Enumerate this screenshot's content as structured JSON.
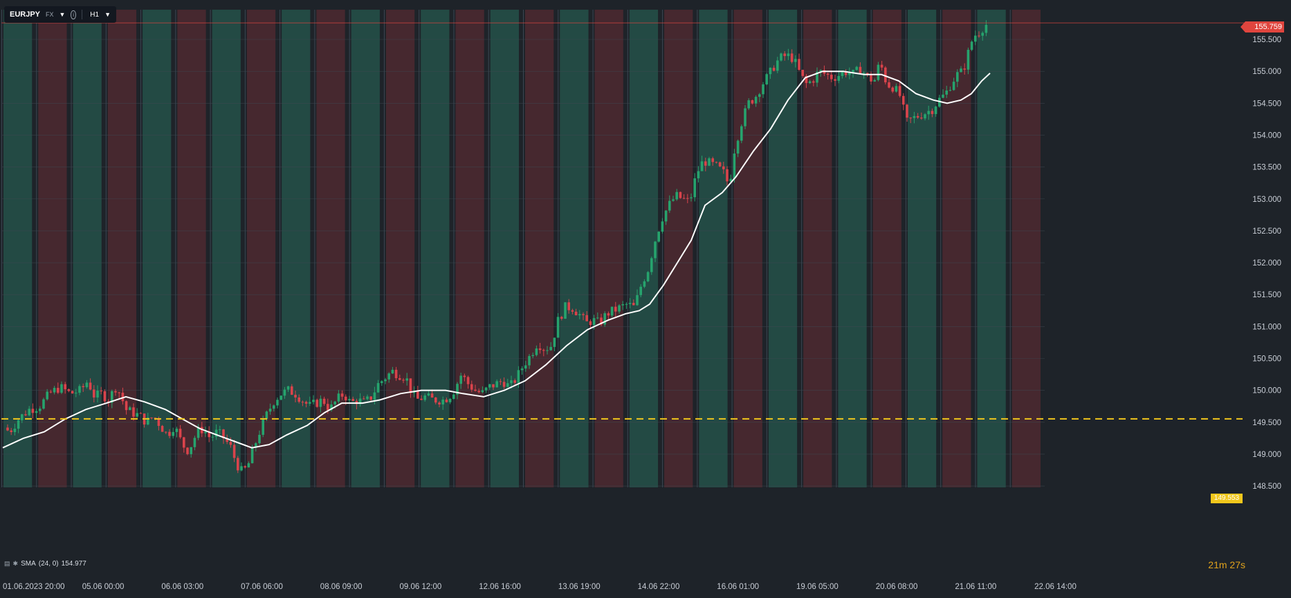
{
  "toolbar": {
    "symbol": "EURJPY",
    "market": "FX",
    "timeframe": "H1",
    "info_icon": "info-icon",
    "caret_icon": "chevron-down-icon"
  },
  "indicator": {
    "icons": [
      "list-icon",
      "settings-icon"
    ],
    "label": "SMA",
    "params": "(24, 0)",
    "value": "154.977"
  },
  "countdown": {
    "min": "21",
    "min_unit": "m",
    "sec": "27",
    "sec_unit": "s"
  },
  "current_price": "155.759",
  "level_price": "149.553",
  "colors": {
    "background": "#1e2329",
    "session_green": "#234a44",
    "session_red": "#46282f",
    "bull": "#26a36d",
    "bear": "#d9434b",
    "sma": "#ffffff",
    "level_line": "#f2c71c",
    "price_line": "#e0453e"
  },
  "chart_data": {
    "type": "candlestick",
    "symbol": "EURJPY",
    "timeframe": "H1",
    "y_ticks": [
      "155.500",
      "155.000",
      "154.500",
      "154.000",
      "153.500",
      "153.000",
      "152.500",
      "152.000",
      "151.500",
      "151.000",
      "150.500",
      "150.000",
      "149.500",
      "149.000",
      "148.500"
    ],
    "ylim": [
      148.45,
      156.15
    ],
    "x_ticks": [
      "01.06.2023  20:00",
      "05.06  00:00",
      "06.06  03:00",
      "07.06  06:00",
      "08.06  09:00",
      "09.06  12:00",
      "12.06  16:00",
      "13.06  19:00",
      "14.06  22:00",
      "16.06  01:00",
      "19.06  05:00",
      "20.06  08:00",
      "21.06  11:00",
      "22.06  14:00"
    ],
    "sessions": [
      "g",
      "r",
      "g",
      "r",
      "g",
      "r",
      "g",
      "r",
      "g",
      "r",
      "g",
      "r",
      "g",
      "r",
      "g",
      "r",
      "g",
      "r",
      "g",
      "r",
      "g",
      "r",
      "g",
      "r",
      "g",
      "r",
      "g",
      "r",
      "g",
      "r"
    ],
    "price_path": [
      [
        0,
        149.45
      ],
      [
        12,
        149.35
      ],
      [
        25,
        149.55
      ],
      [
        40,
        149.7
      ],
      [
        55,
        149.75
      ],
      [
        70,
        149.95
      ],
      [
        85,
        150.05
      ],
      [
        100,
        149.95
      ],
      [
        115,
        150.0
      ],
      [
        125,
        150.15
      ],
      [
        135,
        149.9
      ],
      [
        145,
        149.95
      ],
      [
        155,
        149.85
      ],
      [
        165,
        150.05
      ],
      [
        172,
        149.95
      ],
      [
        180,
        149.7
      ],
      [
        190,
        149.65
      ],
      [
        200,
        149.6
      ],
      [
        210,
        149.5
      ],
      [
        220,
        149.6
      ],
      [
        230,
        149.45
      ],
      [
        240,
        149.3
      ],
      [
        250,
        149.45
      ],
      [
        260,
        149.2
      ],
      [
        268,
        149.05
      ],
      [
        275,
        149.15
      ],
      [
        283,
        149.35
      ],
      [
        292,
        149.4
      ],
      [
        302,
        149.25
      ],
      [
        312,
        149.35
      ],
      [
        322,
        149.25
      ],
      [
        332,
        149.1
      ],
      [
        340,
        148.85
      ],
      [
        348,
        148.72
      ],
      [
        356,
        148.8
      ],
      [
        365,
        149.1
      ],
      [
        375,
        149.4
      ],
      [
        385,
        149.65
      ],
      [
        395,
        149.85
      ],
      [
        405,
        149.95
      ],
      [
        415,
        150.0
      ],
      [
        425,
        149.95
      ],
      [
        435,
        149.85
      ],
      [
        445,
        149.75
      ],
      [
        455,
        149.8
      ],
      [
        465,
        149.85
      ],
      [
        475,
        149.7
      ],
      [
        485,
        149.85
      ],
      [
        495,
        149.95
      ],
      [
        505,
        149.8
      ],
      [
        515,
        149.85
      ],
      [
        525,
        149.8
      ],
      [
        535,
        149.9
      ],
      [
        545,
        150.1
      ],
      [
        555,
        150.2
      ],
      [
        565,
        150.3
      ],
      [
        575,
        150.25
      ],
      [
        585,
        150.2
      ],
      [
        592,
        150.0
      ],
      [
        600,
        149.85
      ],
      [
        612,
        149.9
      ],
      [
        625,
        149.85
      ],
      [
        640,
        149.85
      ],
      [
        652,
        149.95
      ],
      [
        665,
        150.25
      ],
      [
        675,
        150.1
      ],
      [
        685,
        150.0
      ],
      [
        695,
        149.95
      ],
      [
        705,
        150.05
      ],
      [
        715,
        150.1
      ],
      [
        725,
        150.15
      ],
      [
        735,
        150.05
      ],
      [
        745,
        150.2
      ],
      [
        755,
        150.4
      ],
      [
        765,
        150.55
      ],
      [
        775,
        150.75
      ],
      [
        785,
        150.65
      ],
      [
        795,
        150.7
      ],
      [
        805,
        151.1
      ],
      [
        815,
        151.3
      ],
      [
        825,
        151.3
      ],
      [
        835,
        151.2
      ],
      [
        845,
        151.05
      ],
      [
        855,
        151.1
      ],
      [
        865,
        151.05
      ],
      [
        875,
        151.2
      ],
      [
        885,
        151.25
      ],
      [
        895,
        151.3
      ],
      [
        905,
        151.35
      ],
      [
        915,
        151.3
      ],
      [
        925,
        151.65
      ],
      [
        935,
        151.9
      ],
      [
        945,
        152.35
      ],
      [
        955,
        152.7
      ],
      [
        965,
        152.9
      ],
      [
        975,
        153.05
      ],
      [
        985,
        153.0
      ],
      [
        995,
        152.95
      ],
      [
        1005,
        153.4
      ],
      [
        1015,
        153.6
      ],
      [
        1025,
        153.55
      ],
      [
        1035,
        153.5
      ],
      [
        1045,
        153.4
      ],
      [
        1052,
        153.2
      ],
      [
        1060,
        153.8
      ],
      [
        1070,
        154.2
      ],
      [
        1080,
        154.5
      ],
      [
        1090,
        154.6
      ],
      [
        1100,
        154.8
      ],
      [
        1110,
        154.95
      ],
      [
        1118,
        155.1
      ],
      [
        1125,
        155.2
      ],
      [
        1135,
        155.25
      ],
      [
        1145,
        155.2
      ],
      [
        1155,
        154.95
      ],
      [
        1163,
        154.8
      ],
      [
        1172,
        154.85
      ],
      [
        1182,
        155.0
      ],
      [
        1192,
        154.95
      ],
      [
        1202,
        154.9
      ],
      [
        1212,
        154.95
      ],
      [
        1222,
        155.0
      ],
      [
        1232,
        154.95
      ],
      [
        1242,
        155.05
      ],
      [
        1252,
        154.9
      ],
      [
        1262,
        154.85
      ],
      [
        1270,
        155.15
      ],
      [
        1280,
        154.8
      ],
      [
        1290,
        154.75
      ],
      [
        1300,
        154.6
      ],
      [
        1308,
        154.2
      ],
      [
        1316,
        154.25
      ],
      [
        1325,
        154.3
      ],
      [
        1335,
        154.35
      ],
      [
        1345,
        154.4
      ],
      [
        1355,
        154.55
      ],
      [
        1365,
        154.65
      ],
      [
        1375,
        154.85
      ],
      [
        1382,
        154.95
      ],
      [
        1390,
        155.0
      ],
      [
        1398,
        155.3
      ],
      [
        1405,
        155.55
      ],
      [
        1412,
        155.6
      ],
      [
        1420,
        155.7
      ],
      [
        1427,
        155.76
      ]
    ],
    "sma_path": [
      [
        0,
        149.1
      ],
      [
        30,
        149.25
      ],
      [
        60,
        149.35
      ],
      [
        90,
        149.55
      ],
      [
        120,
        149.7
      ],
      [
        150,
        149.8
      ],
      [
        178,
        149.9
      ],
      [
        205,
        149.82
      ],
      [
        235,
        149.7
      ],
      [
        260,
        149.55
      ],
      [
        285,
        149.4
      ],
      [
        310,
        149.3
      ],
      [
        335,
        149.2
      ],
      [
        360,
        149.1
      ],
      [
        385,
        149.15
      ],
      [
        410,
        149.3
      ],
      [
        440,
        149.45
      ],
      [
        465,
        149.65
      ],
      [
        490,
        149.8
      ],
      [
        520,
        149.8
      ],
      [
        545,
        149.85
      ],
      [
        575,
        149.95
      ],
      [
        605,
        150.0
      ],
      [
        640,
        150.0
      ],
      [
        665,
        149.95
      ],
      [
        695,
        149.9
      ],
      [
        725,
        150.0
      ],
      [
        755,
        150.15
      ],
      [
        785,
        150.4
      ],
      [
        815,
        150.7
      ],
      [
        845,
        150.95
      ],
      [
        875,
        151.1
      ],
      [
        900,
        151.2
      ],
      [
        920,
        151.25
      ],
      [
        935,
        151.35
      ],
      [
        955,
        151.65
      ],
      [
        975,
        152.0
      ],
      [
        995,
        152.35
      ],
      [
        1015,
        152.9
      ],
      [
        1040,
        153.1
      ],
      [
        1060,
        153.35
      ],
      [
        1085,
        153.75
      ],
      [
        1110,
        154.1
      ],
      [
        1135,
        154.55
      ],
      [
        1160,
        154.9
      ],
      [
        1185,
        155.0
      ],
      [
        1215,
        155.0
      ],
      [
        1245,
        154.95
      ],
      [
        1270,
        154.95
      ],
      [
        1295,
        154.85
      ],
      [
        1320,
        154.65
      ],
      [
        1345,
        154.55
      ],
      [
        1365,
        154.5
      ],
      [
        1385,
        154.55
      ],
      [
        1400,
        154.65
      ],
      [
        1415,
        154.85
      ],
      [
        1427,
        154.97
      ]
    ],
    "level": 149.553,
    "last": 155.759
  }
}
